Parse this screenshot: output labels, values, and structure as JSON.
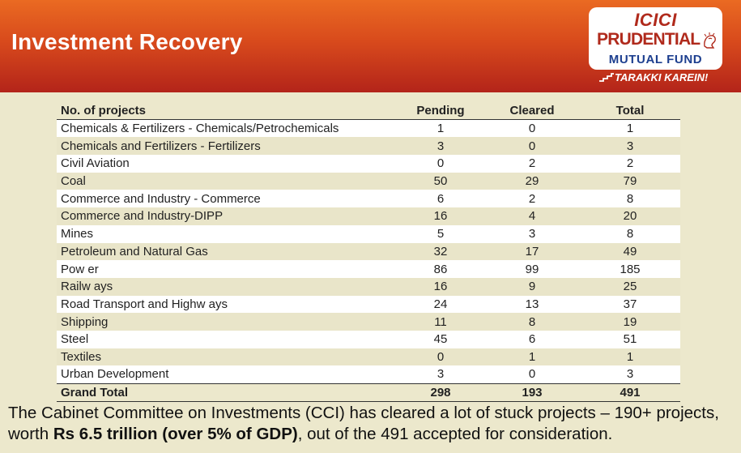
{
  "header": {
    "title": "Investment Recovery",
    "logo": {
      "line1": "ICICI",
      "line2": "PRUDENTIAL",
      "line3": "MUTUAL FUND"
    },
    "tagline": "TARAKKI KAREIN!"
  },
  "table": {
    "columns": [
      "No. of projects",
      "Pending",
      "Cleared",
      "Total"
    ],
    "rows": [
      {
        "name": "Chemicals & Fertilizers - Chemicals/Petrochemicals",
        "pending": "1",
        "cleared": "0",
        "total": "1"
      },
      {
        "name": "Chemicals and Fertilizers - Fertilizers",
        "pending": "3",
        "cleared": "0",
        "total": "3"
      },
      {
        "name": "Civil Aviation",
        "pending": "0",
        "cleared": "2",
        "total": "2"
      },
      {
        "name": "Coal",
        "pending": "50",
        "cleared": "29",
        "total": "79"
      },
      {
        "name": "Commerce and Industry - Commerce",
        "pending": "6",
        "cleared": "2",
        "total": "8"
      },
      {
        "name": "Commerce and Industry-DIPP",
        "pending": "16",
        "cleared": "4",
        "total": "20"
      },
      {
        "name": "Mines",
        "pending": "5",
        "cleared": "3",
        "total": "8"
      },
      {
        "name": "Petroleum and Natural Gas",
        "pending": "32",
        "cleared": "17",
        "total": "49"
      },
      {
        "name": "Pow er",
        "pending": "86",
        "cleared": "99",
        "total": "185"
      },
      {
        "name": "Railw ays",
        "pending": "16",
        "cleared": "9",
        "total": "25"
      },
      {
        "name": "Road Transport and Highw ays",
        "pending": "24",
        "cleared": "13",
        "total": "37"
      },
      {
        "name": "Shipping",
        "pending": "11",
        "cleared": "8",
        "total": "19"
      },
      {
        "name": "Steel",
        "pending": "45",
        "cleared": "6",
        "total": "51"
      },
      {
        "name": "Textiles",
        "pending": "0",
        "cleared": "1",
        "total": "1"
      },
      {
        "name": "Urban Development",
        "pending": "3",
        "cleared": "0",
        "total": "3"
      }
    ],
    "grand_total": {
      "name": "Grand Total",
      "pending": "298",
      "cleared": "193",
      "total": "491"
    }
  },
  "footer": {
    "part1": "The Cabinet Committee on Investments (CCI) has cleared a lot of stuck projects – 190+ projects, worth ",
    "bold": "Rs 6.5 trillion (over 5% of GDP)",
    "part2": ", out of the 491 accepted for consideration."
  },
  "colors": {
    "header_top": "#ea6a22",
    "header_bottom": "#b3241a",
    "background": "#ece8cc",
    "row_alt": "#e9e5c9",
    "logo_red": "#b02a1c",
    "logo_blue": "#1d3f8f"
  }
}
